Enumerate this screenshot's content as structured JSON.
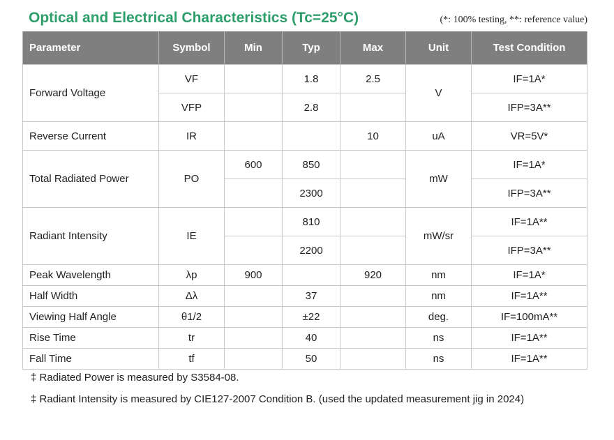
{
  "title": "Optical and Electrical Characteristics (Tc=25°C)",
  "note": "(*: 100% testing, **: reference value)",
  "headers": [
    "Parameter",
    "Symbol",
    "Min",
    "Typ",
    "Max",
    "Unit",
    "Test Condition"
  ],
  "rows": {
    "forward_voltage": {
      "param": "Forward Voltage",
      "unit": "V",
      "sub": [
        {
          "symbol": "VF",
          "min": "",
          "typ": "1.8",
          "max": "2.5",
          "cond": "IF=1A*"
        },
        {
          "symbol": "VFP",
          "min": "",
          "typ": "2.8",
          "max": "",
          "cond": "IFP=3A**"
        }
      ]
    },
    "reverse_current": {
      "param": "Reverse Current",
      "symbol": "IR",
      "min": "",
      "typ": "",
      "max": "10",
      "unit": "uA",
      "cond": "VR=5V*"
    },
    "total_radiated_power": {
      "param": "Total Radiated Power",
      "symbol": "PO",
      "unit": "mW",
      "sub": [
        {
          "min": "600",
          "typ": "850",
          "max": "",
          "cond": "IF=1A*"
        },
        {
          "min": "",
          "typ": "2300",
          "max": "",
          "cond": "IFP=3A**"
        }
      ]
    },
    "radiant_intensity": {
      "param": "Radiant Intensity",
      "symbol": "IE",
      "unit": "mW/sr",
      "sub": [
        {
          "min": "",
          "typ": "810",
          "max": "",
          "cond": "IF=1A**"
        },
        {
          "min": "",
          "typ": "2200",
          "max": "",
          "cond": "IFP=3A**"
        }
      ]
    },
    "peak_wavelength": {
      "param": "Peak Wavelength",
      "symbol": "λp",
      "min": "900",
      "typ": "",
      "max": "920",
      "unit": "nm",
      "cond": "IF=1A*"
    },
    "half_width": {
      "param": "Half Width",
      "symbol": "Δλ",
      "min": "",
      "typ": "37",
      "max": "",
      "unit": "nm",
      "cond": "IF=1A**"
    },
    "viewing_half_angle": {
      "param": "Viewing Half Angle",
      "symbol": "θ1/2",
      "min": "",
      "typ": "±22",
      "max": "",
      "unit": "deg.",
      "cond": "IF=100mA**"
    },
    "rise_time": {
      "param": "Rise Time",
      "symbol": "tr",
      "min": "",
      "typ": "40",
      "max": "",
      "unit": "ns",
      "cond": "IF=1A**"
    },
    "fall_time": {
      "param": "Fall Time",
      "symbol": "tf",
      "min": "",
      "typ": "50",
      "max": "",
      "unit": "ns",
      "cond": "IF=1A**"
    }
  },
  "footnotes": [
    "‡ Radiated Power is measured by S3584-08.",
    "‡ Radiant Intensity is measured by CIE127-2007 Condition B. (used the updated measurement jig in 2024)"
  ]
}
